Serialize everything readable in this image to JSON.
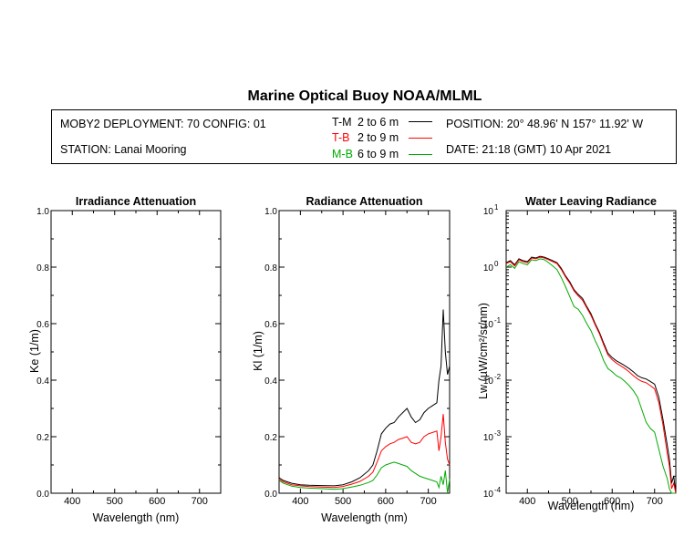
{
  "header": {
    "title": "Marine Optical Buoy NOAA/MLML"
  },
  "info": {
    "deployment": "MOBY2 DEPLOYMENT: 70 CONFIG: 01",
    "station": "STATION: Lanai Mooring",
    "position": "POSITION: 20° 48.96' N   157° 11.92' W",
    "date": "DATE: 21:18 (GMT) 10 Apr 2021"
  },
  "legend": [
    {
      "code": "T-M",
      "range": "2 to 6  m",
      "color": "#000000"
    },
    {
      "code": "T-B",
      "range": "2 to 9  m",
      "color": "#ff0000"
    },
    {
      "code": "M-B",
      "range": "6 to 9  m",
      "color": "#00aa00"
    }
  ],
  "chart_data": [
    {
      "type": "line",
      "title": "Irradiance Attenuation",
      "xlabel": "Wavelength (nm)",
      "ylabel": "Ke  (1/m)",
      "xlim": [
        350,
        750
      ],
      "ylim": [
        0,
        1.0
      ],
      "xticks": [
        400,
        500,
        600,
        700
      ],
      "yticks": [
        0.0,
        0.2,
        0.4,
        0.6,
        0.8,
        1.0
      ],
      "yticklabels": [
        "0.0",
        "0.2",
        "0.4",
        "0.6",
        "0.8",
        "1.0"
      ],
      "series": []
    },
    {
      "type": "line",
      "title": "Radiance Attenuation",
      "xlabel": "Wavelength (nm)",
      "ylabel": "Kl  (1/m)",
      "xlim": [
        350,
        750
      ],
      "ylim": [
        0,
        1.0
      ],
      "xticks": [
        400,
        500,
        600,
        700
      ],
      "yticks": [
        0.0,
        0.2,
        0.4,
        0.6,
        0.8,
        1.0
      ],
      "yticklabels": [
        "0.0",
        "0.2",
        "0.4",
        "0.6",
        "0.8",
        "1.0"
      ],
      "series": [
        {
          "name": "T-M",
          "color": "#000000",
          "x": [
            350,
            360,
            370,
            380,
            400,
            420,
            450,
            480,
            500,
            520,
            540,
            560,
            570,
            580,
            590,
            600,
            610,
            620,
            630,
            640,
            650,
            660,
            670,
            680,
            690,
            700,
            710,
            720,
            725,
            730,
            735,
            740,
            745,
            750
          ],
          "y": [
            0.055,
            0.045,
            0.04,
            0.035,
            0.03,
            0.028,
            0.027,
            0.026,
            0.03,
            0.04,
            0.055,
            0.08,
            0.1,
            0.15,
            0.21,
            0.23,
            0.245,
            0.25,
            0.27,
            0.285,
            0.3,
            0.27,
            0.25,
            0.26,
            0.285,
            0.3,
            0.31,
            0.32,
            0.4,
            0.45,
            0.65,
            0.5,
            0.42,
            0.45
          ]
        },
        {
          "name": "T-B",
          "color": "#ff0000",
          "x": [
            350,
            360,
            370,
            380,
            400,
            420,
            450,
            480,
            500,
            520,
            540,
            560,
            570,
            580,
            590,
            600,
            610,
            620,
            630,
            640,
            650,
            660,
            670,
            680,
            690,
            700,
            710,
            720,
            725,
            730,
            735,
            740,
            745,
            750
          ],
          "y": [
            0.05,
            0.04,
            0.035,
            0.03,
            0.026,
            0.024,
            0.022,
            0.02,
            0.024,
            0.032,
            0.042,
            0.06,
            0.075,
            0.11,
            0.15,
            0.165,
            0.175,
            0.18,
            0.19,
            0.195,
            0.2,
            0.18,
            0.175,
            0.18,
            0.2,
            0.21,
            0.215,
            0.22,
            0.15,
            0.2,
            0.28,
            0.18,
            0.12,
            0.1
          ]
        },
        {
          "name": "M-B",
          "color": "#00aa00",
          "x": [
            350,
            360,
            370,
            380,
            400,
            420,
            450,
            480,
            500,
            520,
            540,
            560,
            570,
            580,
            590,
            600,
            610,
            620,
            630,
            640,
            650,
            660,
            670,
            680,
            690,
            700,
            710,
            720,
            725,
            730,
            735,
            740,
            745,
            750
          ],
          "y": [
            0.045,
            0.035,
            0.03,
            0.025,
            0.02,
            0.018,
            0.016,
            0.014,
            0.016,
            0.022,
            0.028,
            0.038,
            0.045,
            0.065,
            0.09,
            0.1,
            0.105,
            0.11,
            0.105,
            0.1,
            0.095,
            0.08,
            0.07,
            0.06,
            0.055,
            0.05,
            0.045,
            0.04,
            0.02,
            0.06,
            0.03,
            0.08,
            0.0,
            0.05
          ]
        }
      ]
    },
    {
      "type": "line",
      "title": "Water Leaving Radiance",
      "xlabel": "Wavelength (nm)",
      "ylabel": "Lw  (µW/cm²/sr/nm)",
      "xlim": [
        350,
        750
      ],
      "ylim": [
        0.0001,
        10
      ],
      "yscale": "log",
      "xticks": [
        400,
        500,
        600,
        700
      ],
      "yticks": [
        0.0001,
        0.001,
        0.01,
        0.1,
        1,
        10
      ],
      "yticklabels": [
        {
          "b": "10",
          "e": "-4"
        },
        {
          "b": "10",
          "e": "-3"
        },
        {
          "b": "10",
          "e": "-2"
        },
        {
          "b": "10",
          "e": "-1"
        },
        {
          "b": "10",
          "e": "0"
        },
        {
          "b": "10",
          "e": "1"
        }
      ],
      "series": [
        {
          "name": "T-M",
          "color": "#000000",
          "x": [
            350,
            360,
            370,
            380,
            390,
            400,
            410,
            420,
            430,
            440,
            450,
            460,
            470,
            480,
            490,
            500,
            510,
            520,
            530,
            540,
            550,
            560,
            570,
            580,
            590,
            600,
            610,
            620,
            630,
            640,
            650,
            660,
            670,
            680,
            690,
            700,
            710,
            720,
            730,
            735,
            740,
            745,
            750
          ],
          "y": [
            1.2,
            1.3,
            1.1,
            1.4,
            1.3,
            1.25,
            1.5,
            1.45,
            1.55,
            1.5,
            1.4,
            1.3,
            1.2,
            0.95,
            0.7,
            0.55,
            0.4,
            0.33,
            0.28,
            0.2,
            0.15,
            0.1,
            0.07,
            0.045,
            0.03,
            0.025,
            0.022,
            0.02,
            0.018,
            0.016,
            0.014,
            0.012,
            0.011,
            0.0105,
            0.0095,
            0.0085,
            0.005,
            0.002,
            0.0007,
            0.0004,
            0.00015,
            0.0002,
            0.0001
          ]
        },
        {
          "name": "T-B",
          "color": "#ff0000",
          "x": [
            350,
            360,
            370,
            380,
            390,
            400,
            410,
            420,
            430,
            440,
            450,
            460,
            470,
            480,
            490,
            500,
            510,
            520,
            530,
            540,
            550,
            560,
            570,
            580,
            590,
            600,
            610,
            620,
            630,
            640,
            650,
            660,
            670,
            680,
            690,
            700,
            710,
            720,
            730,
            735,
            740,
            745,
            750
          ],
          "y": [
            1.15,
            1.25,
            1.05,
            1.35,
            1.25,
            1.2,
            1.45,
            1.4,
            1.5,
            1.45,
            1.35,
            1.25,
            1.15,
            0.9,
            0.67,
            0.52,
            0.38,
            0.31,
            0.26,
            0.19,
            0.14,
            0.095,
            0.066,
            0.042,
            0.028,
            0.023,
            0.02,
            0.018,
            0.016,
            0.014,
            0.012,
            0.0105,
            0.0095,
            0.009,
            0.008,
            0.007,
            0.004,
            0.0016,
            0.0005,
            0.0003,
            0.00012,
            0.00015,
            0.0001
          ]
        },
        {
          "name": "M-B",
          "color": "#00aa00",
          "x": [
            350,
            360,
            370,
            380,
            390,
            400,
            410,
            420,
            430,
            440,
            450,
            460,
            470,
            480,
            490,
            500,
            510,
            520,
            530,
            540,
            550,
            560,
            570,
            580,
            590,
            600,
            610,
            620,
            630,
            640,
            650,
            660,
            670,
            680,
            690,
            700,
            710,
            720,
            730,
            735,
            740,
            745,
            750
          ],
          "y": [
            1.0,
            1.1,
            0.95,
            1.25,
            1.15,
            1.1,
            1.35,
            1.3,
            1.4,
            1.35,
            1.2,
            1.05,
            0.9,
            0.65,
            0.45,
            0.3,
            0.2,
            0.18,
            0.14,
            0.1,
            0.075,
            0.05,
            0.035,
            0.022,
            0.016,
            0.014,
            0.012,
            0.011,
            0.0095,
            0.008,
            0.0065,
            0.005,
            0.003,
            0.0018,
            0.0014,
            0.0012,
            0.0006,
            0.0003,
            0.00018,
            0.00012,
            0.0001,
            0.0001,
            0.0001
          ]
        }
      ]
    }
  ]
}
